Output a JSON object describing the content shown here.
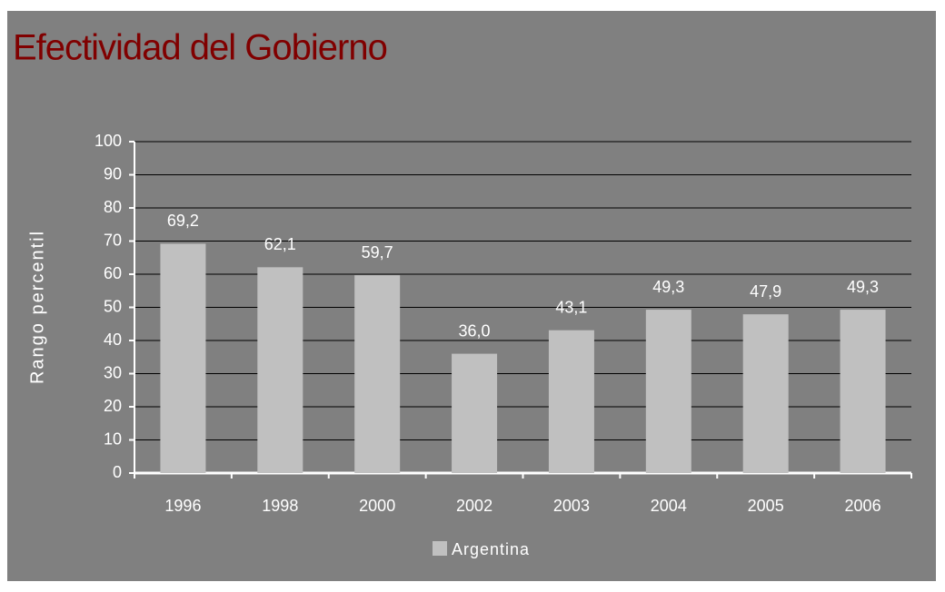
{
  "chart_data": {
    "type": "bar",
    "title": "Efectividad del Gobierno",
    "y_label": "Rango percentil",
    "categories": [
      "1996",
      "1998",
      "2000",
      "2002",
      "2003",
      "2004",
      "2005",
      "2006"
    ],
    "series": [
      {
        "name": "Argentina",
        "color": "#c0c0c0",
        "values": [
          69.2,
          62.1,
          59.7,
          36.0,
          43.1,
          49.3,
          47.9,
          49.3
        ],
        "value_labels": [
          "69,2",
          "62,1",
          "59,7",
          "36,0",
          "43,1",
          "49,3",
          "47,9",
          "49,3"
        ]
      }
    ],
    "ylim": [
      0,
      100
    ],
    "yticks": [
      0,
      10,
      20,
      30,
      40,
      50,
      60,
      70,
      80,
      90,
      100
    ],
    "grid": true,
    "legend": "bottom"
  }
}
